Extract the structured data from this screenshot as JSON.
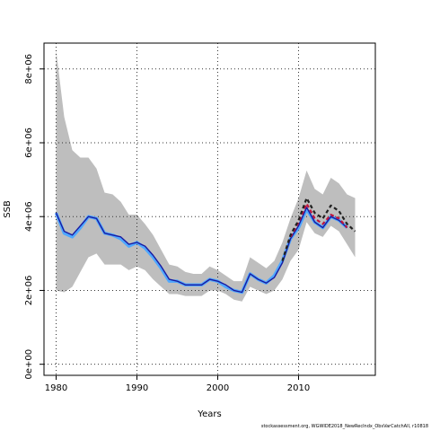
{
  "chart_data": {
    "type": "line",
    "title": "",
    "xlabel": "Years",
    "ylabel": "SSB",
    "xlim": [
      1978.5,
      2019.5
    ],
    "ylim": [
      -300000,
      8700000
    ],
    "x_ticks": [
      1980,
      1990,
      2000,
      2010
    ],
    "y_ticks": [
      0,
      2000000,
      4000000,
      6000000,
      8000000
    ],
    "y_tick_labels": [
      "0e+00",
      "2e+06",
      "4e+06",
      "6e+06",
      "8e+06"
    ],
    "grid": true,
    "colors": {
      "band": "#bebebe",
      "central": "#1a1aa0",
      "highlight": "#4fa8ff",
      "retro": "#222222",
      "retro_alt": "#c0143c"
    },
    "confidence_band": {
      "x": [
        1980,
        1981,
        1982,
        1983,
        1984,
        1985,
        1986,
        1987,
        1988,
        1989,
        1990,
        1991,
        1992,
        1993,
        1994,
        1995,
        1996,
        1997,
        1998,
        1999,
        2000,
        2001,
        2002,
        2003,
        2004,
        2005,
        2006,
        2007,
        2008,
        2009,
        2010,
        2011,
        2012,
        2013,
        2014,
        2015,
        2016,
        2017
      ],
      "upper": [
        8500000,
        6700000,
        5800000,
        5600000,
        5600000,
        5300000,
        4650000,
        4600000,
        4400000,
        4050000,
        4050000,
        3800000,
        3500000,
        3100000,
        2700000,
        2650000,
        2500000,
        2450000,
        2450000,
        2650000,
        2550000,
        2400000,
        2250000,
        2250000,
        2900000,
        2750000,
        2600000,
        2800000,
        3300000,
        3950000,
        4500000,
        5250000,
        4750000,
        4600000,
        5050000,
        4900000,
        4600000,
        4500000
      ],
      "lower": [
        2000000,
        1950000,
        2100000,
        2500000,
        2900000,
        3000000,
        2700000,
        2700000,
        2700000,
        2550000,
        2650000,
        2550000,
        2300000,
        2100000,
        1900000,
        1900000,
        1850000,
        1850000,
        1850000,
        2000000,
        2000000,
        1900000,
        1750000,
        1700000,
        2100000,
        2000000,
        1900000,
        2000000,
        2300000,
        2800000,
        3100000,
        3850000,
        3550000,
        3450000,
        3750000,
        3600000,
        3250000,
        2900000
      ]
    },
    "series": [
      {
        "x": [
          1980,
          1981,
          1982,
          1983,
          1984,
          1985,
          1986,
          1987,
          1988,
          1989,
          1990,
          1991,
          1992,
          1993,
          1994,
          1995,
          1996,
          1997,
          1998,
          1999,
          2000,
          2001,
          2002,
          2003,
          2004,
          2005,
          2006,
          2007,
          2008,
          2009,
          2010,
          2011,
          2012,
          2013,
          2014,
          2015,
          2016
        ],
        "values": [
          4100000,
          3550000,
          3450000,
          3700000,
          4000000,
          3950000,
          3550000,
          3500000,
          3400000,
          3200000,
          3300000,
          3150000,
          2900000,
          2600000,
          2250000,
          2250000,
          2150000,
          2150000,
          2150000,
          2300000,
          2250000,
          2100000,
          2000000,
          1950000,
          2450000,
          2300000,
          2200000,
          2400000,
          2800000,
          3400000,
          3700000,
          4200000,
          3850000,
          3700000,
          4000000,
          3900000,
          3700000
        ],
        "style": "solid",
        "role": "highlight"
      },
      {
        "x": [
          1980,
          1981,
          1982,
          1983,
          1984,
          1985,
          1986,
          1987,
          1988,
          1989,
          1990,
          1991,
          1992,
          1993,
          1994,
          1995,
          1996,
          1997,
          1998,
          1999,
          2000,
          2001,
          2002,
          2003,
          2004,
          2005,
          2006,
          2007,
          2008,
          2009,
          2010,
          2011,
          2012,
          2013,
          2014,
          2015,
          2016
        ],
        "values": [
          4100000,
          3600000,
          3500000,
          3750000,
          4000000,
          3950000,
          3550000,
          3500000,
          3450000,
          3250000,
          3300000,
          3200000,
          2950000,
          2650000,
          2300000,
          2250000,
          2150000,
          2150000,
          2150000,
          2300000,
          2250000,
          2150000,
          2000000,
          1950000,
          2450000,
          2300000,
          2200000,
          2350000,
          2750000,
          3400000,
          3750000,
          4250000,
          3850000,
          3700000,
          4000000,
          3900000,
          3700000
        ],
        "style": "solid",
        "role": "central"
      },
      {
        "x": [
          2009,
          2010,
          2011,
          2012,
          2013,
          2014,
          2015,
          2016
        ],
        "values": [
          3450000,
          3850000,
          4350000,
          3950000,
          3800000,
          4050000,
          3950000,
          3700000
        ],
        "style": "dashed",
        "role": "retro_alt"
      },
      {
        "x": [
          2008,
          2009,
          2010,
          2011,
          2012,
          2013,
          2014,
          2015,
          2016,
          2017
        ],
        "values": [
          2800000,
          3500000,
          3900000,
          4500000,
          4100000,
          3950000,
          4300000,
          4150000,
          3800000,
          3600000
        ],
        "style": "dashed",
        "role": "retro"
      }
    ],
    "footer": "stockassessment.org, WGWIDE2018_NewRecIndx_ObsVarCatchAll, r10818"
  }
}
